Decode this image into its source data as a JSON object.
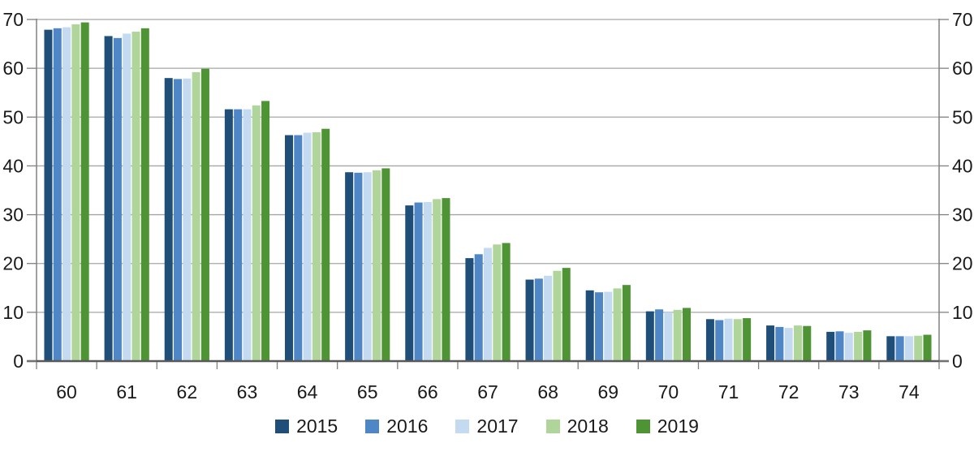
{
  "chart_data": {
    "type": "bar",
    "title": "",
    "xlabel": "",
    "ylabel": "",
    "categories": [
      "60",
      "61",
      "62",
      "63",
      "64",
      "65",
      "66",
      "67",
      "68",
      "69",
      "70",
      "71",
      "72",
      "73",
      "74"
    ],
    "series": [
      {
        "name": "2015",
        "color": "#1F4E79",
        "values": [
          67.9,
          66.6,
          58.0,
          51.6,
          46.3,
          38.7,
          31.9,
          21.1,
          16.7,
          14.5,
          10.2,
          8.6,
          7.3,
          6.0,
          5.1
        ]
      },
      {
        "name": "2016",
        "color": "#4E86C6",
        "values": [
          68.2,
          66.2,
          57.8,
          51.6,
          46.3,
          38.6,
          32.5,
          21.9,
          16.9,
          14.1,
          10.6,
          8.4,
          7.0,
          6.1,
          5.1
        ]
      },
      {
        "name": "2017",
        "color": "#C3DAF0",
        "values": [
          68.4,
          67.1,
          57.9,
          51.6,
          46.8,
          38.7,
          32.6,
          23.2,
          17.5,
          14.2,
          10.0,
          8.7,
          6.8,
          5.8,
          5.1
        ]
      },
      {
        "name": "2018",
        "color": "#AFD59A",
        "values": [
          69.0,
          67.5,
          59.2,
          52.4,
          46.9,
          39.1,
          33.2,
          23.9,
          18.5,
          14.9,
          10.5,
          8.6,
          7.3,
          6.0,
          5.2
        ]
      },
      {
        "name": "2019",
        "color": "#4E9334",
        "values": [
          69.4,
          68.2,
          59.9,
          53.3,
          47.6,
          39.5,
          33.4,
          24.2,
          19.1,
          15.6,
          10.9,
          8.8,
          7.2,
          6.3,
          5.4
        ]
      }
    ],
    "ylim": [
      0,
      70
    ],
    "yticks": [
      0,
      10,
      20,
      30,
      40,
      50,
      60,
      70
    ],
    "y_axis_labels": "both-sides",
    "grid": "horizontal",
    "legend_position": "bottom-center"
  },
  "colors": {
    "background": "#FFFFFF",
    "gridline": "#A6A6A6",
    "axis_line": "#808080",
    "baseline": "#595959",
    "text": "#1A1A1A"
  }
}
